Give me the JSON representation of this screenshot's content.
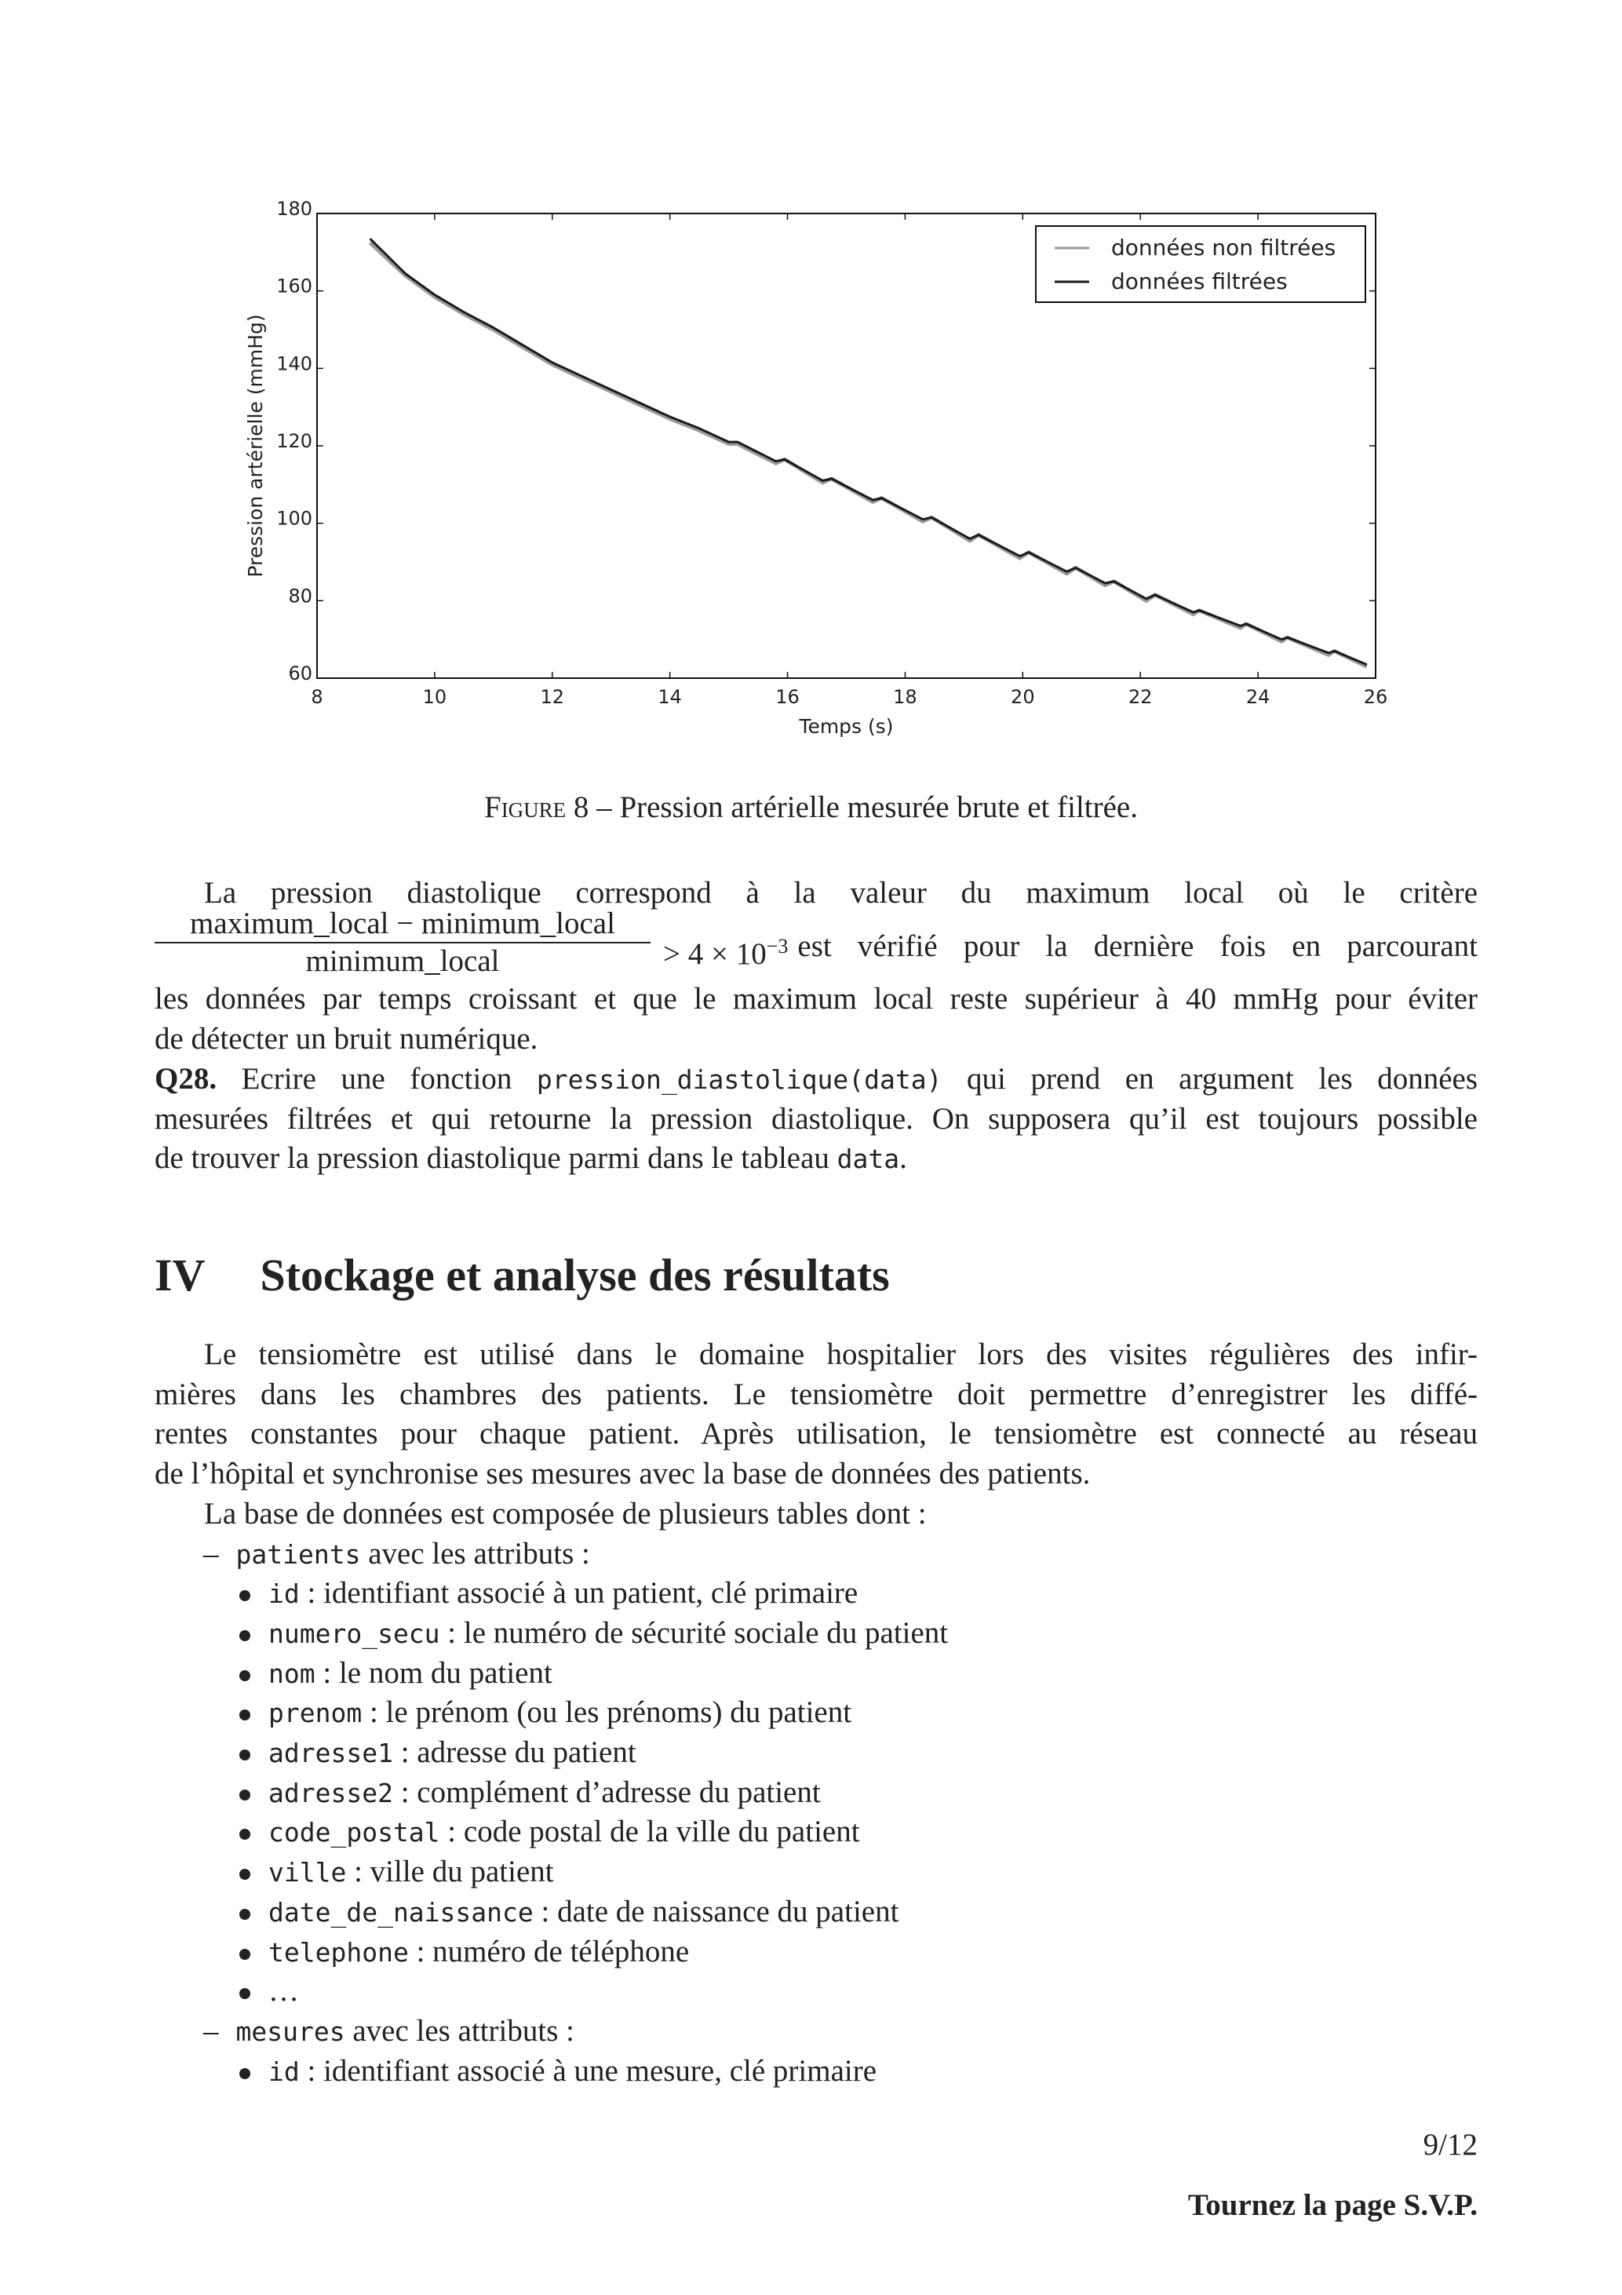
{
  "chart_data": {
    "type": "line",
    "xlabel": "Temps (s)",
    "ylabel": "Pression artérielle (mmHg)",
    "xlim": [
      8,
      26
    ],
    "ylim": [
      60,
      180
    ],
    "xticks": [
      8,
      10,
      12,
      14,
      16,
      18,
      20,
      22,
      24,
      26
    ],
    "yticks": [
      60,
      80,
      100,
      120,
      140,
      160,
      180
    ],
    "grid": false,
    "legend_placement": "top-right",
    "x": [
      8.9,
      9.5,
      10,
      10.5,
      11,
      11.5,
      12,
      12.5,
      13,
      13.5,
      14,
      14.5,
      15.0,
      15.15,
      15.8,
      15.95,
      16.6,
      16.75,
      17.45,
      17.6,
      18.3,
      18.45,
      19.1,
      19.25,
      19.95,
      20.1,
      20.75,
      20.9,
      21.4,
      21.55,
      22.1,
      22.25,
      22.9,
      23.0,
      23.7,
      23.8,
      24.4,
      24.5,
      25.2,
      25.3,
      25.85
    ],
    "series": [
      {
        "name": "données non filtrées",
        "color": "#9a9a9a",
        "values": [
          172.5,
          164,
          158.5,
          154,
          150,
          145.5,
          141,
          137.5,
          134,
          130.5,
          127,
          124,
          120.5,
          120.5,
          115.5,
          116.5,
          110.5,
          111.5,
          105.5,
          106.5,
          100.5,
          101.5,
          95.5,
          97,
          91,
          92.5,
          87,
          88.5,
          84,
          85,
          80,
          81.5,
          76.5,
          77.5,
          73,
          74,
          69.5,
          70.5,
          66,
          67,
          63
        ]
      },
      {
        "name": "données filtrées",
        "color": "#1a1a1a",
        "values": [
          173.5,
          164.5,
          159,
          154.5,
          150.5,
          146,
          141.5,
          138,
          134.5,
          131,
          127.5,
          124.5,
          121,
          121,
          116,
          116.5,
          111,
          111.5,
          106,
          106.5,
          101,
          101.5,
          96,
          97,
          91.5,
          92.5,
          87.5,
          88.5,
          84.5,
          85,
          80.5,
          81.5,
          77,
          77.5,
          73.5,
          74,
          70,
          70.5,
          66.5,
          67,
          63.5
        ]
      }
    ]
  },
  "caption": {
    "label": "Figure 8",
    "text": " – Pression artérielle mesurée brute et filtrée."
  },
  "para1": {
    "line1": "La pression diastolique correspond à la valeur du maximum local où le critère",
    "frac_num": "maximum_local − minimum_local",
    "frac_den": "minimum_local",
    "after_frac": "> 4 × 10",
    "exponent": "−3",
    "after_exp": " est vérifié pour la dernière fois en parcourant",
    "line3": "les données par temps croissant et que le maximum local reste supérieur à 40 mmHg pour éviter",
    "line4": "de détecter un bruit numérique."
  },
  "q28": {
    "label": "Q28.",
    "lines": [
      [
        {
          "t": " Ecrire une fonction "
        },
        {
          "c": "pression_diastolique(data)"
        },
        {
          "t": " qui prend en argument les données"
        }
      ],
      [
        {
          "t": "mesurées filtrées et qui retourne la pression diastolique. On supposera qu’il est toujours possible"
        }
      ],
      [
        {
          "t": "de trouver la pression diastolique parmi dans le tableau "
        },
        {
          "c": "data"
        },
        {
          "t": "."
        }
      ]
    ]
  },
  "section": {
    "number": "IV",
    "title": "Stockage et analyse des résultats"
  },
  "para2": [
    "Le tensiomètre est utilisé dans le domaine hospitalier lors des visites régulières des infir-",
    "mières dans les chambres des patients. Le tensiomètre doit permettre d’enregistrer les diffé-",
    "rentes constantes pour chaque patient. Après utilisation, le tensiomètre est connecté au réseau",
    "de l’hôpital et synchronise ses mesures avec la base de données des patients.",
    "La base de données est composée de plusieurs tables dont :"
  ],
  "tables": [
    {
      "dash": "–",
      "name": "patients",
      "suffix": " avec les attributs :",
      "attributes": [
        {
          "code": "id",
          "desc": " : identifiant associé à un patient, clé primaire"
        },
        {
          "code": "numero_secu",
          "desc": " : le numéro de sécurité sociale du patient"
        },
        {
          "code": "nom",
          "desc": " : le nom du patient"
        },
        {
          "code": "prenom",
          "desc": " : le prénom (ou les prénoms) du patient"
        },
        {
          "code": "adresse1",
          "desc": " : adresse du patient"
        },
        {
          "code": "adresse2",
          "desc": " : complément d’adresse du patient"
        },
        {
          "code": "code_postal",
          "desc": " : code postal de la ville du patient"
        },
        {
          "code": "ville",
          "desc": " : ville du patient"
        },
        {
          "code": "date_de_naissance",
          "desc": " : date de naissance du patient"
        },
        {
          "code": "telephone",
          "desc": " : numéro de téléphone"
        },
        {
          "code": "",
          "desc": "…"
        }
      ]
    },
    {
      "dash": "–",
      "name": "mesures",
      "suffix": " avec les attributs :",
      "attributes": [
        {
          "code": "id",
          "desc": " : identifiant associé à une mesure, clé primaire"
        }
      ]
    }
  ],
  "footer": {
    "page": "9/12",
    "note": "Tournez la page S.V.P."
  }
}
